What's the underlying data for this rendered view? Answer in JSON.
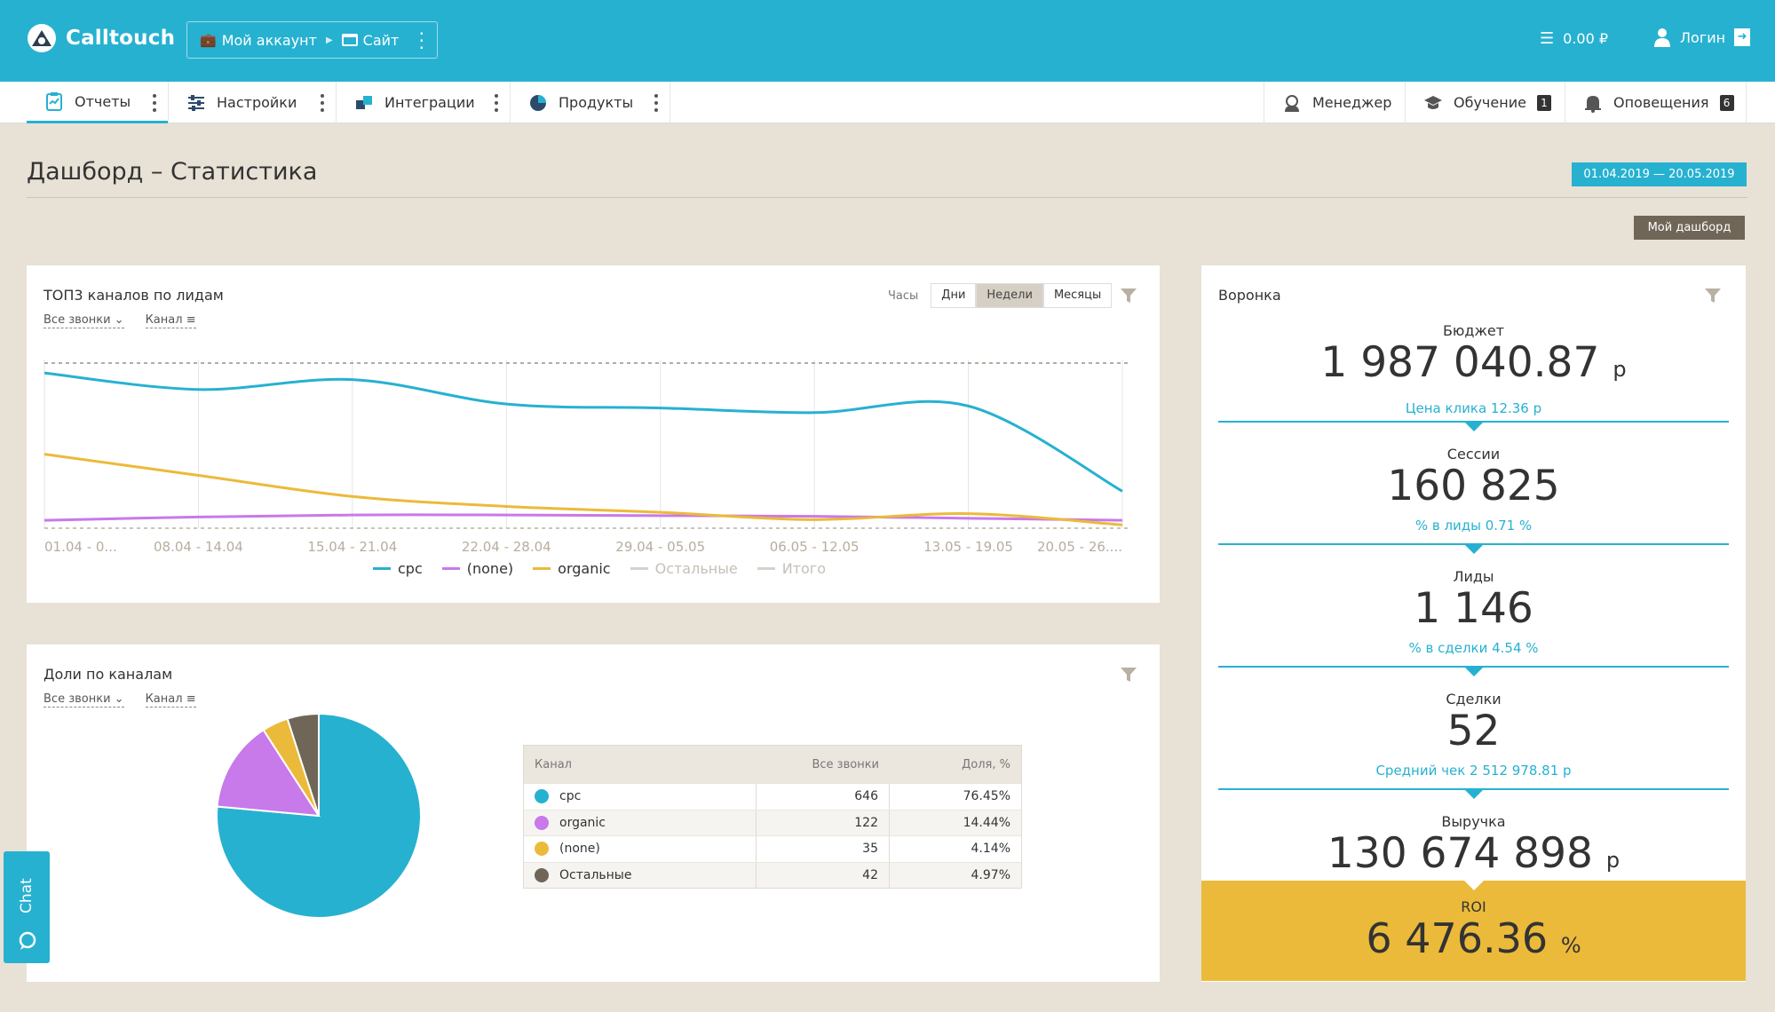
{
  "header": {
    "logo_text": "Calltouch",
    "account_label": "Мой аккаунт",
    "site_label": "Сайт",
    "balance": "0.00 ₽",
    "login_label": "Логин"
  },
  "nav": {
    "items": [
      {
        "label": "Отчеты",
        "icon": "clipboard-icon"
      },
      {
        "label": "Настройки",
        "icon": "sliders-icon"
      },
      {
        "label": "Интеграции",
        "icon": "puzzle-icon"
      },
      {
        "label": "Продукты",
        "icon": "pie-icon"
      }
    ],
    "right": {
      "manager": "Менеджер",
      "learning": "Обучение",
      "learning_badge": "1",
      "notifications": "Оповещения",
      "notifications_badge": "6"
    }
  },
  "page": {
    "title": "Дашборд – Статистика",
    "date_range": "01.04.2019  —  20.05.2019",
    "my_dashboard_label": "Мой дашборд"
  },
  "line_card": {
    "title": "ТОП3 каналов по лидам",
    "filter_calls": "Все звонки",
    "filter_channel": "Канал",
    "period_label": "Часы",
    "periods": [
      "Дни",
      "Недели",
      "Месяцы"
    ],
    "selected_period": "Недели"
  },
  "pie_card": {
    "title": "Доли по каналам",
    "filter_calls": "Все звонки",
    "filter_channel": "Канал",
    "table": {
      "headers": [
        "Канал",
        "Все звонки",
        "Доля, %"
      ],
      "rows": [
        {
          "channel": "cpc",
          "calls": "646",
          "share": "76.45%",
          "color": "#27b1d0"
        },
        {
          "channel": "organic",
          "calls": "122",
          "share": "14.44%",
          "color": "#c879ea"
        },
        {
          "channel": "(none)",
          "calls": "35",
          "share": "4.14%",
          "color": "#ecba3a"
        },
        {
          "channel": "Остальные",
          "calls": "42",
          "share": "4.97%",
          "color": "#706658"
        }
      ]
    }
  },
  "funnel": {
    "title": "Воронка",
    "stages": [
      {
        "label": "Бюджет",
        "value": "1 987 040.87",
        "unit": "р",
        "sub": "Цена клика 12.36 р"
      },
      {
        "label": "Сессии",
        "value": "160 825",
        "unit": "",
        "sub": "% в лиды 0.71 %"
      },
      {
        "label": "Лиды",
        "value": "1 146",
        "unit": "",
        "sub": "% в сделки 4.54 %"
      },
      {
        "label": "Сделки",
        "value": "52",
        "unit": "",
        "sub": "Средний чек 2 512 978.81 р"
      },
      {
        "label": "Выручка",
        "value": "130 674 898",
        "unit": "р",
        "sub": ""
      }
    ],
    "roi_label": "ROI",
    "roi_value": "6 476.36",
    "roi_unit": "%"
  },
  "chat_label": "Chat",
  "chart_data": [
    {
      "type": "line",
      "title": "ТОП3 каналов по лидам",
      "categories": [
        "01.04 - 0...",
        "08.04 - 14.04",
        "15.04 - 21.04",
        "22.04 - 28.04",
        "29.04 - 05.05",
        "06.05 - 12.05",
        "13.05 - 19.05",
        "20.05 - 26...."
      ],
      "series": [
        {
          "name": "cpc",
          "color": "#27b1d0",
          "values": [
            235,
            210,
            225,
            188,
            182,
            175,
            185,
            56
          ]
        },
        {
          "name": "(none)",
          "color": "#c879ea",
          "values": [
            12,
            17,
            20,
            20,
            19,
            18,
            15,
            12
          ]
        },
        {
          "name": "organic",
          "color": "#ecba3a",
          "values": [
            112,
            80,
            48,
            33,
            24,
            13,
            22,
            5
          ]
        },
        {
          "name": "Остальные",
          "color": "#d6d2cb",
          "values": null
        },
        {
          "name": "Итого",
          "color": "#d6d2cb",
          "values": null
        }
      ],
      "ylim": [
        0,
        250
      ],
      "grid": "vertical",
      "legend": "bottom"
    },
    {
      "type": "pie",
      "title": "Доли по каналам",
      "labels": [
        "cpc",
        "organic",
        "(none)",
        "Остальные"
      ],
      "values": [
        76.45,
        14.44,
        4.14,
        4.97
      ],
      "colors": [
        "#27b1d0",
        "#c879ea",
        "#ecba3a",
        "#706658"
      ]
    }
  ]
}
